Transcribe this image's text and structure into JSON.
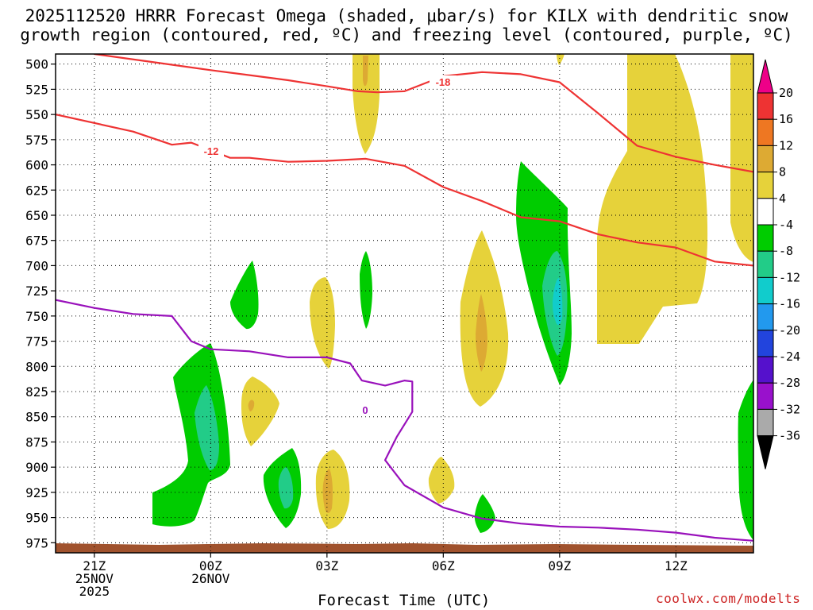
{
  "chart_data": {
    "type": "heatmap",
    "title_line1": "2025112520 HRRR Forecast Omega (shaded, μbar/s) for KILX with dendritic snow",
    "title_line2": "growth region (contoured, red, ºC) and freezing level (contoured, purple, ºC)",
    "xlabel": "Forecast Time (UTC)",
    "credit": "coolwx.com/modelts",
    "x_ticks": [
      {
        "hours": 0,
        "lines": [
          "21Z",
          "25NOV",
          "2025"
        ]
      },
      {
        "hours": 3,
        "lines": [
          "00Z",
          "26NOV"
        ]
      },
      {
        "hours": 6,
        "lines": [
          "03Z"
        ]
      },
      {
        "hours": 9,
        "lines": [
          "06Z"
        ]
      },
      {
        "hours": 12,
        "lines": [
          "09Z"
        ]
      },
      {
        "hours": 15,
        "lines": [
          "12Z"
        ]
      }
    ],
    "x_range_hours": [
      -1,
      17
    ],
    "y_ticks": [
      500,
      525,
      550,
      575,
      600,
      625,
      650,
      675,
      700,
      725,
      750,
      775,
      800,
      825,
      850,
      875,
      900,
      925,
      950,
      975
    ],
    "y_range_hPa": [
      490,
      985
    ],
    "colorbar": {
      "labels": [
        "20",
        "16",
        "12",
        "8",
        "4",
        "-4",
        "-8",
        "-12",
        "-16",
        "-20",
        "-24",
        "-28",
        "-32",
        "-36"
      ],
      "bins": [
        "#ee0088",
        "#ee3333",
        "#ee7722",
        "#ddaa33",
        "#e6d23a",
        "#ffffff",
        "#00cc00",
        "#22cc88",
        "#11cccc",
        "#2299ee",
        "#2244dd",
        "#5511cc",
        "#9911cc",
        "#aaaaaa",
        "#000000"
      ]
    },
    "omega_regions": [
      {
        "label": "positive 4-8",
        "color": "#e6d23a"
      },
      {
        "label": "positive 8-12",
        "color": "#ddaa33"
      },
      {
        "label": "negative -4 to -8",
        "color": "#00cc00"
      },
      {
        "label": "negative -8 to -12",
        "color": "#22cc88"
      },
      {
        "label": "negative -12 to -16",
        "color": "#11cccc"
      }
    ],
    "series": [
      {
        "name": "-12 ºC isotherm",
        "color": "#ee3333",
        "label": "-12",
        "x_hours": [
          -1,
          1,
          2,
          2.5,
          3.5,
          4,
          5,
          6,
          7,
          8,
          9,
          10,
          11,
          12,
          13,
          14,
          15,
          16,
          17
        ],
        "y_hPa": [
          550,
          567,
          580,
          578,
          593,
          593,
          597,
          596,
          594,
          601,
          622,
          636,
          652,
          656,
          669,
          677,
          682,
          696,
          700
        ]
      },
      {
        "name": "-18 ºC isotherm",
        "color": "#ee3333",
        "label": "-18",
        "x_hours": [
          0,
          1.5,
          3,
          4,
          5,
          6,
          6.8,
          7.3,
          8,
          9,
          10,
          11,
          12,
          13,
          14,
          15,
          16,
          17
        ],
        "y_hPa": [
          490,
          498,
          506,
          511,
          516,
          522,
          527,
          528,
          527,
          512,
          508,
          510,
          518,
          549,
          581,
          592,
          600,
          607
        ]
      },
      {
        "name": "0 ºC freezing level",
        "color": "#9911bb",
        "label": "0",
        "x_hours": [
          -1,
          0,
          1,
          2,
          2.5,
          3,
          4,
          5,
          6,
          6.6,
          6.9,
          7.5,
          8,
          8.2,
          8.2,
          7.8,
          7.5,
          8,
          9,
          10,
          11,
          12,
          13,
          14,
          15,
          16,
          17
        ],
        "y_hPa": [
          734,
          742,
          748,
          750,
          775,
          783,
          785,
          791,
          791,
          797,
          814,
          819,
          814,
          815,
          845,
          870,
          893,
          918,
          940,
          951,
          956,
          959,
          960,
          962,
          965,
          970,
          973
        ]
      }
    ]
  }
}
